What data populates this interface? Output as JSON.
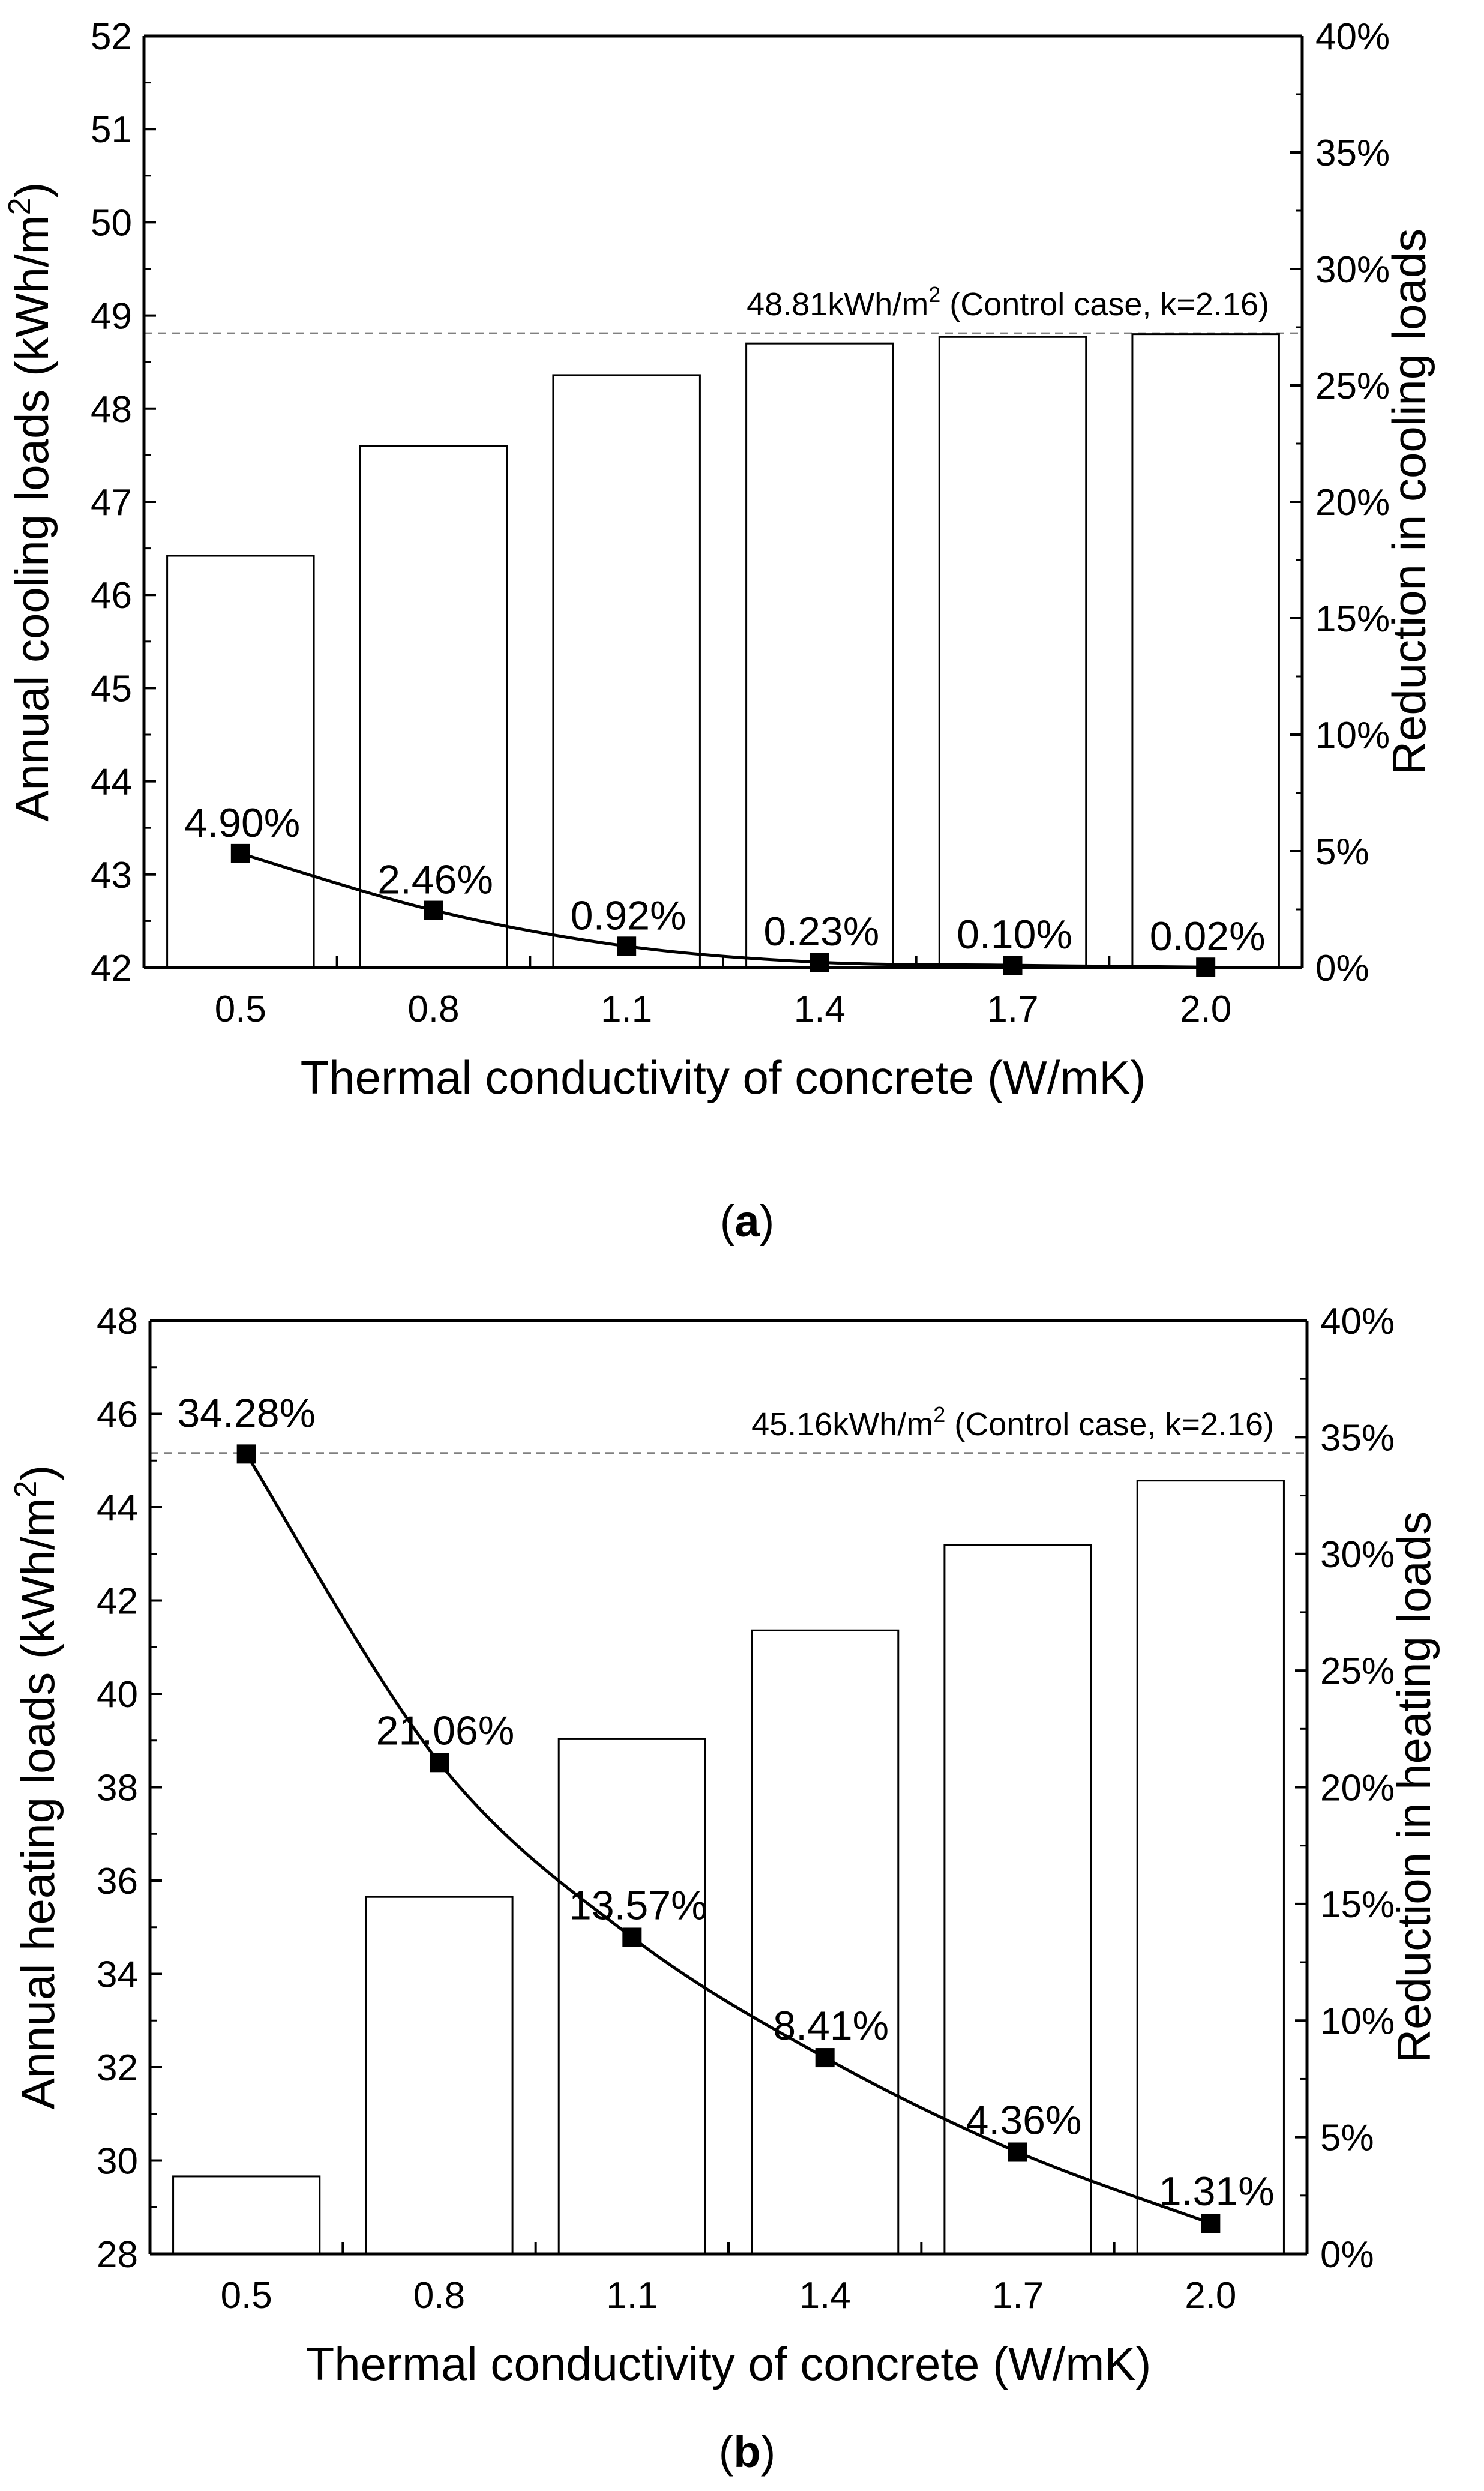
{
  "colors": {
    "axis": "#000000",
    "bar_fill": "#ffffff",
    "bar_stroke": "#000000",
    "line": "#000000",
    "marker": "#000000",
    "ref_line": "#808080"
  },
  "chart_data": [
    {
      "type": "bar",
      "panel_label": "a",
      "categories": [
        "0.5",
        "0.8",
        "1.1",
        "1.4",
        "1.7",
        "2.0"
      ],
      "xlabel": "Thermal conductivity of concrete (W/mK)",
      "ylabel": {
        "main": "Annual cooling loads (kWh/m",
        "sup": "2",
        "end": ")"
      },
      "y2label": "Reduction in cooling loads",
      "ylim": [
        42,
        52
      ],
      "yticks": [
        "42",
        "43",
        "44",
        "45",
        "46",
        "47",
        "48",
        "49",
        "50",
        "51",
        "52"
      ],
      "y2lim": [
        0,
        40
      ],
      "y2ticks": [
        "0%",
        "5%",
        "10%",
        "15%",
        "20%",
        "25%",
        "30%",
        "35%",
        "40%"
      ],
      "series": [
        {
          "name": "Annual cooling loads",
          "kind": "bar",
          "axis": "left",
          "values": [
            46.42,
            47.6,
            48.36,
            48.7,
            48.77,
            48.8
          ]
        },
        {
          "name": "Reduction in cooling loads",
          "kind": "line",
          "axis": "right",
          "values": [
            4.9,
            2.46,
            0.92,
            0.23,
            0.1,
            0.02
          ],
          "labels": [
            "4.90%",
            "2.46%",
            "0.92%",
            "0.23%",
            "0.10%",
            "0.02%"
          ]
        }
      ],
      "reference": {
        "value": 48.81,
        "label_pre": "48.81kWh/m",
        "label_sup": "2",
        "label_post": " (Control case, k=2.16)"
      }
    },
    {
      "type": "bar",
      "panel_label": "b",
      "categories": [
        "0.5",
        "0.8",
        "1.1",
        "1.4",
        "1.7",
        "2.0"
      ],
      "xlabel": "Thermal conductivity of concrete (W/mK)",
      "ylabel": {
        "main": "Annual heating loads (kWh/m",
        "sup": "2",
        "end": ")"
      },
      "y2label": "Reduction in heating loads",
      "ylim": [
        28,
        48
      ],
      "yticks": [
        "28",
        "30",
        "32",
        "34",
        "36",
        "38",
        "40",
        "42",
        "44",
        "46",
        "48"
      ],
      "y2lim": [
        0,
        40
      ],
      "y2ticks": [
        "0%",
        "5%",
        "10%",
        "15%",
        "20%",
        "25%",
        "30%",
        "35%",
        "40%"
      ],
      "series": [
        {
          "name": "Annual heating loads",
          "kind": "bar",
          "axis": "left",
          "values": [
            29.66,
            35.65,
            39.03,
            41.36,
            43.19,
            44.57
          ]
        },
        {
          "name": "Reduction in heating loads",
          "kind": "line",
          "axis": "right",
          "values": [
            34.28,
            21.06,
            13.57,
            8.41,
            4.36,
            1.31
          ],
          "labels": [
            "34.28%",
            "21.06%",
            "13.57%",
            "8.41%",
            "4.36%",
            "1.31%"
          ]
        }
      ],
      "reference": {
        "value": 45.16,
        "label_pre": "45.16kWh/m",
        "label_sup": "2",
        "label_post": " (Control case, k=2.16)"
      }
    }
  ]
}
